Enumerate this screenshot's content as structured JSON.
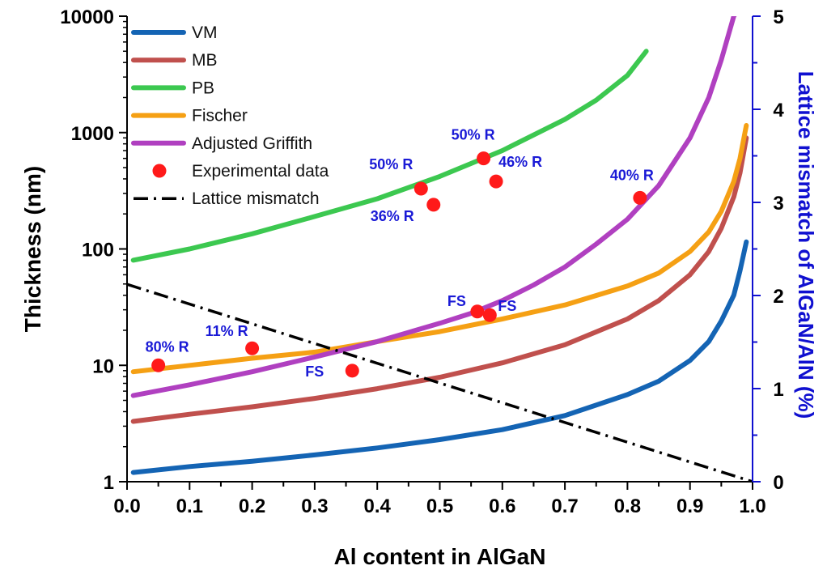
{
  "chart_data": {
    "type": "line",
    "xlabel": "Al content in AlGaN",
    "ylabel": "Thickness (nm)",
    "y2label": "Lattice mismatch of AlGaN/AlN (%)",
    "xlim": [
      0.0,
      1.0
    ],
    "ylim": [
      1,
      10000
    ],
    "yscale": "log",
    "y2lim": [
      0,
      5
    ],
    "x_ticks": [
      "0.0",
      "0.1",
      "0.2",
      "0.3",
      "0.4",
      "0.5",
      "0.6",
      "0.7",
      "0.8",
      "0.9",
      "1.0"
    ],
    "y_ticks": [
      "1",
      "10",
      "100",
      "1000",
      "10000"
    ],
    "y2_ticks": [
      "0",
      "1",
      "2",
      "3",
      "4",
      "5"
    ],
    "legend_position": "top-left",
    "grid": false,
    "colors": {
      "VM": "#1464b4",
      "MB": "#c0504d",
      "PB": "#3cc850",
      "Fischer": "#f5a014",
      "Adjusted Griffith": "#b040c0",
      "Experimental data": "#ff1a1a",
      "Lattice mismatch": "#000000",
      "right_axis": "#1010d0",
      "annotation": "#1a1ad6"
    },
    "series": [
      {
        "name": "VM",
        "axis": "left",
        "style": "solid",
        "x": [
          0.01,
          0.1,
          0.2,
          0.3,
          0.4,
          0.5,
          0.6,
          0.7,
          0.8,
          0.85,
          0.9,
          0.93,
          0.95,
          0.97,
          0.98,
          0.99
        ],
        "y": [
          1.2,
          1.35,
          1.5,
          1.7,
          1.95,
          2.3,
          2.8,
          3.7,
          5.6,
          7.3,
          11,
          16,
          24,
          40,
          65,
          115
        ]
      },
      {
        "name": "MB",
        "axis": "left",
        "style": "solid",
        "x": [
          0.01,
          0.1,
          0.2,
          0.3,
          0.4,
          0.5,
          0.6,
          0.7,
          0.8,
          0.85,
          0.9,
          0.93,
          0.95,
          0.97,
          0.98,
          0.99
        ],
        "y": [
          3.3,
          3.8,
          4.4,
          5.2,
          6.3,
          7.9,
          10.5,
          15,
          25,
          36,
          60,
          95,
          150,
          280,
          450,
          900
        ]
      },
      {
        "name": "PB",
        "axis": "left",
        "style": "solid",
        "x": [
          0.01,
          0.1,
          0.2,
          0.3,
          0.4,
          0.5,
          0.6,
          0.7,
          0.75,
          0.8,
          0.83
        ],
        "y": [
          80,
          100,
          135,
          190,
          270,
          420,
          700,
          1300,
          1900,
          3100,
          5000
        ]
      },
      {
        "name": "Fischer",
        "axis": "left",
        "style": "solid",
        "x": [
          0.01,
          0.1,
          0.2,
          0.3,
          0.4,
          0.5,
          0.6,
          0.7,
          0.8,
          0.85,
          0.9,
          0.93,
          0.95,
          0.97,
          0.98,
          0.99
        ],
        "y": [
          8.8,
          10,
          11.5,
          13,
          16,
          19.5,
          25,
          33,
          48,
          62,
          95,
          140,
          210,
          380,
          600,
          1150
        ]
      },
      {
        "name": "Adjusted Griffith",
        "axis": "left",
        "style": "solid",
        "x": [
          0.01,
          0.1,
          0.2,
          0.3,
          0.4,
          0.5,
          0.55,
          0.6,
          0.65,
          0.7,
          0.75,
          0.8,
          0.85,
          0.9,
          0.93,
          0.95,
          0.97,
          0.98
        ],
        "y": [
          5.5,
          6.8,
          8.8,
          11.8,
          16,
          23,
          28,
          36,
          49,
          70,
          110,
          180,
          350,
          900,
          2000,
          4200,
          10000,
          12000
        ]
      },
      {
        "name": "Lattice mismatch",
        "axis": "right",
        "style": "dash-dot",
        "x": [
          0.0,
          1.0
        ],
        "y": [
          2.12,
          0.0
        ]
      }
    ],
    "scatter": {
      "name": "Experimental data",
      "points": [
        {
          "x": 0.05,
          "y": 10,
          "label": "80% R"
        },
        {
          "x": 0.2,
          "y": 14,
          "label": "11% R"
        },
        {
          "x": 0.36,
          "y": 9,
          "label": "FS"
        },
        {
          "x": 0.47,
          "y": 330,
          "label": "50% R"
        },
        {
          "x": 0.49,
          "y": 240,
          "label": "36% R"
        },
        {
          "x": 0.56,
          "y": 29,
          "label": "FS"
        },
        {
          "x": 0.57,
          "y": 600,
          "label": "50% R"
        },
        {
          "x": 0.58,
          "y": 27,
          "label": "FS"
        },
        {
          "x": 0.59,
          "y": 380,
          "label": "46% R"
        },
        {
          "x": 0.82,
          "y": 275,
          "label": "40% R"
        }
      ]
    },
    "legend": [
      "VM",
      "MB",
      "PB",
      "Fischer",
      "Adjusted Griffith",
      "Experimental data",
      "Lattice mismatch"
    ]
  }
}
